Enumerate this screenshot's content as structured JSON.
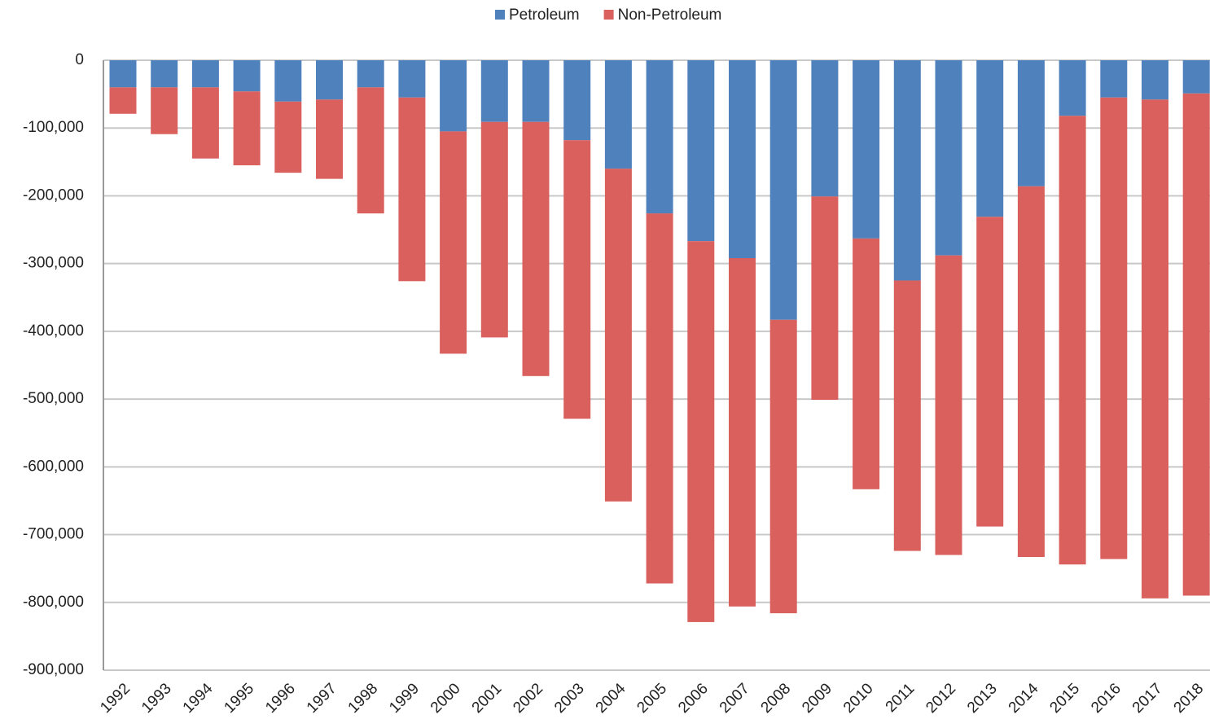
{
  "chart_data": {
    "type": "stacked_bar",
    "categories": [
      "1992",
      "1993",
      "1994",
      "1995",
      "1996",
      "1997",
      "1998",
      "1999",
      "2000",
      "2001",
      "2002",
      "2003",
      "2004",
      "2005",
      "2006",
      "2007",
      "2008",
      "2009",
      "2010",
      "2011",
      "2012",
      "2013",
      "2014",
      "2015",
      "2016",
      "2017",
      "2018"
    ],
    "series": [
      {
        "name": "Petroleum",
        "color": "#4f81bd",
        "values": [
          -40000,
          -40000,
          -40000,
          -46000,
          -61000,
          -58000,
          -40000,
          -55000,
          -105000,
          -91000,
          -91000,
          -118000,
          -160000,
          -226000,
          -267000,
          -292000,
          -383000,
          -201000,
          -263000,
          -325000,
          -288000,
          -231000,
          -186000,
          -82000,
          -55000,
          -58000,
          -49000
        ]
      },
      {
        "name": "Non-Petroleum",
        "color": "#d9605c",
        "values": [
          -39000,
          -69000,
          -105000,
          -109000,
          -105000,
          -117000,
          -186000,
          -271000,
          -328000,
          -318000,
          -375000,
          -411000,
          -491000,
          -546000,
          -562000,
          -514000,
          -433000,
          -300000,
          -370000,
          -399000,
          -442000,
          -457000,
          -547000,
          -662000,
          -681000,
          -736000,
          -741000
        ]
      }
    ],
    "ylim": [
      -900000,
      0
    ],
    "yticks": [
      0,
      {
        "value": -100000,
        "label": "-100,000"
      },
      {
        "value": -200000,
        "label": "-200,000"
      },
      {
        "value": -300000,
        "label": "-300,000"
      },
      {
        "value": -400000,
        "label": "-400,000"
      },
      {
        "value": -500000,
        "label": "-500,000"
      },
      {
        "value": -600000,
        "label": "-600,000"
      },
      {
        "value": -700000,
        "label": "-700,000"
      },
      {
        "value": -800000,
        "label": "-800,000"
      },
      {
        "value": -900000,
        "label": "-900,000"
      }
    ],
    "grid": true,
    "legend": "top"
  }
}
